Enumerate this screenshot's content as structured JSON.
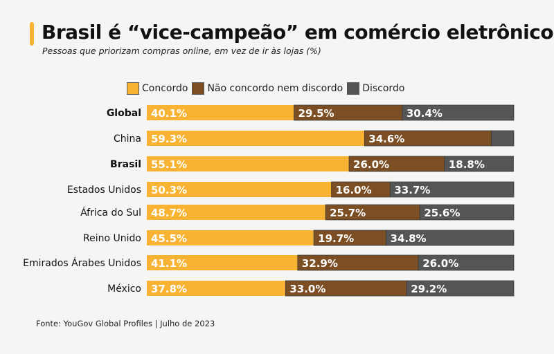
{
  "header": {
    "title": "Brasil é “vice-campeão” em comércio eletrônico",
    "subtitle": "Pessoas que priorizam compras online, em vez de ir às lojas (%)"
  },
  "footer": {
    "source": "Fonte: YouGov Global Profiles | Julho de 2023"
  },
  "colors": {
    "accent": "#f8b333",
    "concordo": "#f8b333",
    "neutro": "#7b4e24",
    "discordo": "#555555"
  },
  "chart_data": {
    "type": "bar",
    "orientation": "horizontal",
    "stacked": true,
    "title": "Brasil é “vice-campeão” em comércio eletrônico",
    "subtitle": "Pessoas que priorizam compras online, em vez de ir às lojas (%)",
    "legend_position": "top",
    "grid": false,
    "xlim": [
      0,
      100
    ],
    "categories": [
      "Global",
      "China",
      "Brasil",
      "Estados Unidos",
      "África do Sul",
      "Reino Unido",
      "Emirados Árabes Unidos",
      "México"
    ],
    "bold_categories": [
      "Global",
      "Brasil"
    ],
    "series": [
      {
        "name": "Concordo",
        "color": "#f8b333",
        "values": [
          40.1,
          59.3,
          55.1,
          50.3,
          48.7,
          45.5,
          41.1,
          37.8
        ]
      },
      {
        "name": "Não concordo nem discordo",
        "color": "#7b4e24",
        "values": [
          29.5,
          34.6,
          26.0,
          16.0,
          25.7,
          19.7,
          32.9,
          33.0
        ]
      },
      {
        "name": "Discordo",
        "color": "#555555",
        "values": [
          30.4,
          6.1,
          18.8,
          33.7,
          25.6,
          34.8,
          26.0,
          29.2
        ],
        "labeled": [
          true,
          false,
          true,
          true,
          true,
          true,
          true,
          true
        ]
      }
    ]
  }
}
